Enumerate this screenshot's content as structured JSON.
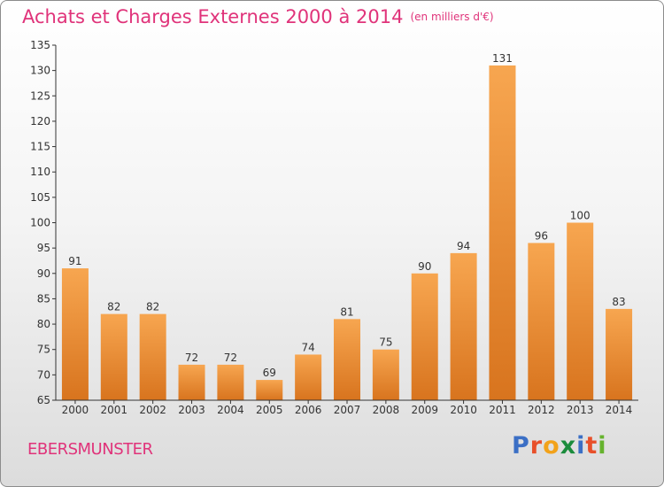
{
  "header": {
    "title": "Achats et Charges Externes 2000 à 2014",
    "unit": "(en milliers d'€)"
  },
  "commune": "EBERSMUNSTER",
  "brand": {
    "letters": [
      "P",
      "r",
      "o",
      "x",
      "i",
      "t",
      "i"
    ],
    "colors": [
      "#3b6fc5",
      "#e8502a",
      "#f2a21a",
      "#1b8c3c",
      "#3b6fc5",
      "#e8502a",
      "#66b32e"
    ]
  },
  "colors": {
    "accent": "#e0337a",
    "bar_top": "#f7a650",
    "bar_bottom": "#d8741e",
    "axis": "#333333"
  },
  "chart_data": {
    "type": "bar",
    "categories": [
      "2000",
      "2001",
      "2002",
      "2003",
      "2004",
      "2005",
      "2006",
      "2007",
      "2008",
      "2009",
      "2010",
      "2011",
      "2012",
      "2013",
      "2014"
    ],
    "values": [
      91,
      82,
      82,
      72,
      72,
      69,
      74,
      81,
      75,
      90,
      94,
      131,
      96,
      100,
      83
    ],
    "ylim": [
      65,
      135
    ],
    "yticks": [
      65,
      70,
      75,
      80,
      85,
      90,
      95,
      100,
      105,
      110,
      115,
      120,
      125,
      130,
      135
    ],
    "grid": false,
    "data_labels": true
  }
}
